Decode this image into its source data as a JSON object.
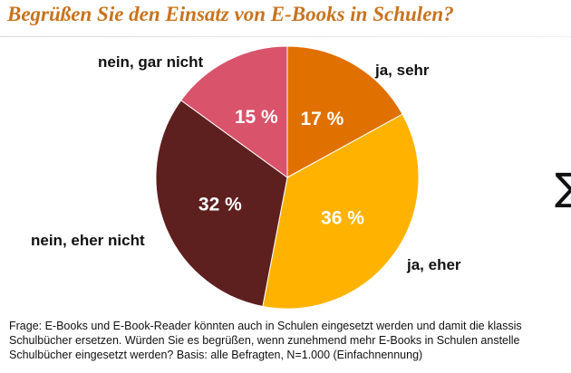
{
  "chart_data": {
    "type": "pie",
    "title": "Begrüßen Sie den Einsatz von E-Books in Schulen?",
    "slices": [
      {
        "label": "ja, sehr",
        "value": 17,
        "value_label": "17 %",
        "color": "#e07000"
      },
      {
        "label": "ja, eher",
        "value": 36,
        "value_label": "36 %",
        "color": "#ffb300"
      },
      {
        "label": "nein, eher nicht",
        "value": 32,
        "value_label": "32 %",
        "color": "#5e1f1f"
      },
      {
        "label": "nein, gar nicht",
        "value": 15,
        "value_label": "15 %",
        "color": "#d9536b"
      }
    ]
  },
  "footnote": {
    "line1": "Frage: E-Books und E-Book-Reader könnten auch in Schulen eingesetzt werden und damit die klassis",
    "line2": "Schulbücher ersetzen. Würden Sie es begrüßen, wenn zunehmend mehr E-Books in Schulen anstelle",
    "line3": "Schulbücher eingesetzt werden? Basis: alle Befragten, N=1.000 (Einfachnennung)"
  },
  "edge_glyph": "∑"
}
